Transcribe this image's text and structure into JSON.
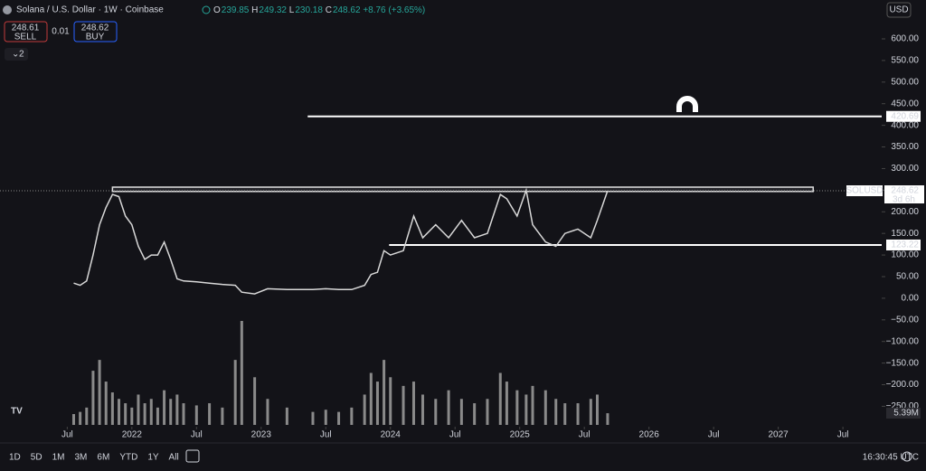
{
  "header": {
    "symbol": "Solana / U.S. Dollar · 1W · Coinbase",
    "ohlc": [
      {
        "label": "O",
        "value": 239.85
      },
      {
        "label": "H",
        "value": 249.32
      },
      {
        "label": "L",
        "value": 230.18
      },
      {
        "label": "C",
        "value": 248.62
      }
    ],
    "change": "+8.76 (+3.65%)",
    "sell": {
      "price": 248.61,
      "label": "SELL"
    },
    "spread": 0.01,
    "buy": {
      "price": 248.62,
      "label": "BUY"
    },
    "indicators": "2",
    "currency": "USD"
  },
  "toolbar": {
    "ranges": [
      "1D",
      "5D",
      "1M",
      "3M",
      "6M",
      "YTD",
      "1Y",
      "All"
    ],
    "time": "16:30:45 UTC"
  },
  "chart_data": {
    "type": "line",
    "price_tag": "SOLUSD",
    "countdown": "3d 6h",
    "xlim": [
      2020.98,
      2027.8
    ],
    "ylim": [
      -293,
      669
    ],
    "xticks": [
      {
        "value": 2021.5,
        "label": "Jul"
      },
      {
        "value": 2022,
        "label": "2022"
      },
      {
        "value": 2022.5,
        "label": "Jul"
      },
      {
        "value": 2023,
        "label": "2023"
      },
      {
        "value": 2023.5,
        "label": "Jul"
      },
      {
        "value": 2024,
        "label": "2024"
      },
      {
        "value": 2024.5,
        "label": "Jul"
      },
      {
        "value": 2025,
        "label": "2025"
      },
      {
        "value": 2025.5,
        "label": "Jul"
      },
      {
        "value": 2026,
        "label": "2026"
      },
      {
        "value": 2026.5,
        "label": "Jul"
      },
      {
        "value": 2027,
        "label": "2027"
      },
      {
        "value": 2027.5,
        "label": "Jul"
      }
    ],
    "yticks": [
      {
        "value": 600,
        "label": "600.00"
      },
      {
        "value": 550,
        "label": "550.00"
      },
      {
        "value": 500,
        "label": "500.00"
      },
      {
        "value": 450,
        "label": "450.00"
      },
      {
        "value": 400,
        "label": "400.00"
      },
      {
        "value": 350,
        "label": "350.00"
      },
      {
        "value": 300,
        "label": "300.00"
      },
      {
        "value": 250,
        "label": "250.00"
      },
      {
        "value": 200,
        "label": "200.00"
      },
      {
        "value": 150,
        "label": "150.00"
      },
      {
        "value": 100,
        "label": "100.00"
      },
      {
        "value": 50,
        "label": "50.00"
      },
      {
        "value": 0,
        "label": "0.00"
      },
      {
        "value": -50,
        "label": "−50.00"
      },
      {
        "value": -100,
        "label": "−100.00"
      },
      {
        "value": -150,
        "label": "−150.00"
      },
      {
        "value": -200,
        "label": "−200.00"
      },
      {
        "value": -250,
        "label": "−250.00"
      }
    ],
    "x": [
      2021.55,
      2021.6,
      2021.65,
      2021.7,
      2021.75,
      2021.8,
      2021.85,
      2021.9,
      2021.95,
      2022.0,
      2022.05,
      2022.1,
      2022.15,
      2022.2,
      2022.25,
      2022.3,
      2022.35,
      2022.4,
      2022.5,
      2022.6,
      2022.7,
      2022.8,
      2022.85,
      2022.95,
      2023.05,
      2023.2,
      2023.4,
      2023.5,
      2023.6,
      2023.7,
      2023.8,
      2023.85,
      2023.9,
      2023.95,
      2024.0,
      2024.1,
      2024.18,
      2024.25,
      2024.35,
      2024.45,
      2024.55,
      2024.65,
      2024.75,
      2024.85,
      2024.9,
      2024.98,
      2025.05,
      2025.1,
      2025.2,
      2025.28,
      2025.35,
      2025.45,
      2025.55,
      2025.6,
      2025.68
    ],
    "series": [
      {
        "color": "#d8d8d8",
        "values": [
          35,
          30,
          40,
          100,
          170,
          210,
          240,
          235,
          190,
          170,
          120,
          90,
          100,
          100,
          130,
          90,
          45,
          40,
          38,
          35,
          32,
          30,
          14,
          10,
          22,
          20,
          20,
          22,
          20,
          20,
          30,
          55,
          60,
          110,
          100,
          110,
          190,
          140,
          170,
          140,
          180,
          140,
          150,
          240,
          230,
          190,
          250,
          170,
          130,
          120,
          150,
          160,
          140,
          180,
          248.62
        ]
      }
    ],
    "volume": {
      "color": "#8a8a8a",
      "values": [
        5,
        6,
        8,
        25,
        30,
        20,
        15,
        12,
        10,
        8,
        14,
        10,
        12,
        8,
        16,
        12,
        14,
        10,
        9,
        10,
        8,
        30,
        48,
        22,
        12,
        8,
        6,
        7,
        6,
        8,
        14,
        24,
        20,
        30,
        22,
        18,
        20,
        14,
        12,
        16,
        12,
        10,
        12,
        24,
        20,
        16,
        14,
        18,
        16,
        12,
        10,
        10,
        12,
        14,
        5.39
      ],
      "value_labels": [
        null,
        null,
        null,
        null,
        null,
        null,
        null,
        null,
        null,
        null,
        null,
        null,
        null,
        null,
        null,
        null,
        null,
        null,
        null,
        null,
        null,
        null,
        null,
        null,
        null,
        null,
        null,
        null,
        null,
        null,
        null,
        null,
        null,
        null,
        null,
        null,
        null,
        null,
        null,
        null,
        null,
        null,
        null,
        null,
        null,
        null,
        null,
        null,
        null,
        null,
        null,
        null,
        null,
        null,
        "5.39M"
      ]
    },
    "hlines": [
      {
        "value": 420.69,
        "x0": 2023.36
      },
      {
        "value": 123.22,
        "x0": 2023.99
      }
    ],
    "zone": {
      "ylim": [
        247,
        257
      ],
      "xlim": [
        2021.85,
        2027.27
      ]
    }
  }
}
